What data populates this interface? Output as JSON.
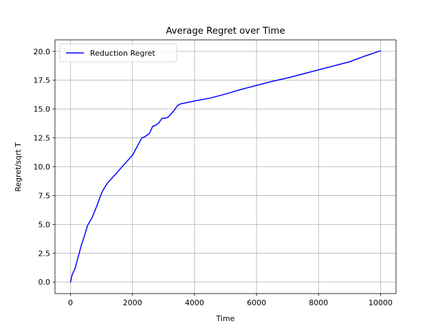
{
  "chart_data": {
    "type": "line",
    "title": "Average Regret over Time",
    "xlabel": "Time",
    "ylabel": "Regret/sqrt T",
    "xlim": [
      -500,
      10500
    ],
    "ylim": [
      -1.0,
      21.0
    ],
    "xticks": [
      0,
      2000,
      4000,
      6000,
      8000,
      10000
    ],
    "xtick_labels": [
      "0",
      "2000",
      "4000",
      "6000",
      "8000",
      "10000"
    ],
    "yticks": [
      0.0,
      2.5,
      5.0,
      7.5,
      10.0,
      12.5,
      15.0,
      17.5,
      20.0
    ],
    "ytick_labels": [
      "0.0",
      "2.5",
      "5.0",
      "7.5",
      "10.0",
      "12.5",
      "15.0",
      "17.5",
      "20.0"
    ],
    "grid": true,
    "legend_position": "top-left",
    "series": [
      {
        "name": "Reduction Regret",
        "color": "#0000ff",
        "x": [
          0,
          50,
          150,
          250,
          350,
          450,
          550,
          700,
          850,
          1000,
          1100,
          1200,
          1400,
          1600,
          1800,
          2000,
          2100,
          2200,
          2300,
          2400,
          2550,
          2650,
          2750,
          2850,
          2950,
          3050,
          3150,
          3250,
          3350,
          3450,
          3550,
          4000,
          4500,
          5000,
          5500,
          6000,
          6500,
          7000,
          7500,
          8000,
          8500,
          9000,
          9500,
          10000
        ],
        "y": [
          0.0,
          0.6,
          1.2,
          2.2,
          3.2,
          4.0,
          4.9,
          5.6,
          6.6,
          7.7,
          8.2,
          8.6,
          9.2,
          9.8,
          10.4,
          11.0,
          11.5,
          12.0,
          12.5,
          12.6,
          12.9,
          13.5,
          13.6,
          13.8,
          14.2,
          14.2,
          14.3,
          14.6,
          14.9,
          15.3,
          15.45,
          15.7,
          15.95,
          16.3,
          16.7,
          17.05,
          17.4,
          17.7,
          18.05,
          18.4,
          18.75,
          19.1,
          19.6,
          20.05
        ]
      }
    ]
  }
}
